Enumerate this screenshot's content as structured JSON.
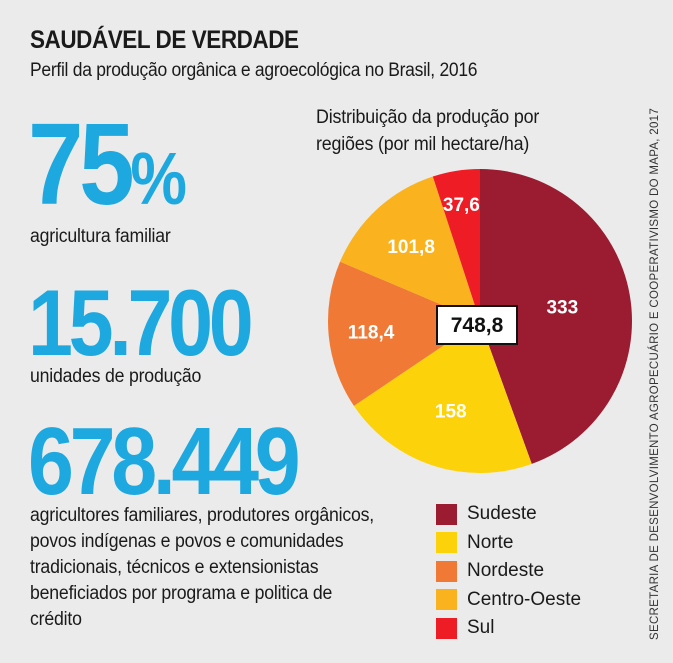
{
  "header": {
    "title": "SAUDÁVEL DE VERDADE",
    "subtitle": "Perfil da produção orgânica e agroecológica no Brasil, 2016"
  },
  "stats": [
    {
      "value": "75",
      "suffix": "%",
      "caption": "agricultura familiar"
    },
    {
      "value": "15.700",
      "caption": "unidades de produção"
    },
    {
      "value": "678.449",
      "caption": "agricultores familiares, produtores orgânicos, povos indígenas e povos e comunidades tradicionais, técnicos e extensionistas beneficiados por programa e politica de crédito"
    }
  ],
  "source": "SECRETARIA DE DESENVOLVIMENTO AGROPECUÁRIO E COOPERATIVISMO DO MAPA, 2017",
  "chart_data": {
    "type": "pie",
    "title": "Distribuição da produção por regiões (por mil hectare/ha)",
    "total_label": "748,8",
    "slices": [
      {
        "name": "Sudeste",
        "value": 333,
        "label": "333",
        "color": "#9b1c31"
      },
      {
        "name": "Norte",
        "value": 158,
        "label": "158",
        "color": "#fcd20a"
      },
      {
        "name": "Nordeste",
        "value": 118.4,
        "label": "118,4",
        "color": "#f07a35"
      },
      {
        "name": "Centro-Oeste",
        "value": 101.8,
        "label": "101,8",
        "color": "#fab21e"
      },
      {
        "name": "Sul",
        "value": 37.6,
        "label": "37,6",
        "color": "#ee1c25"
      }
    ],
    "legend_position": "bottom"
  }
}
